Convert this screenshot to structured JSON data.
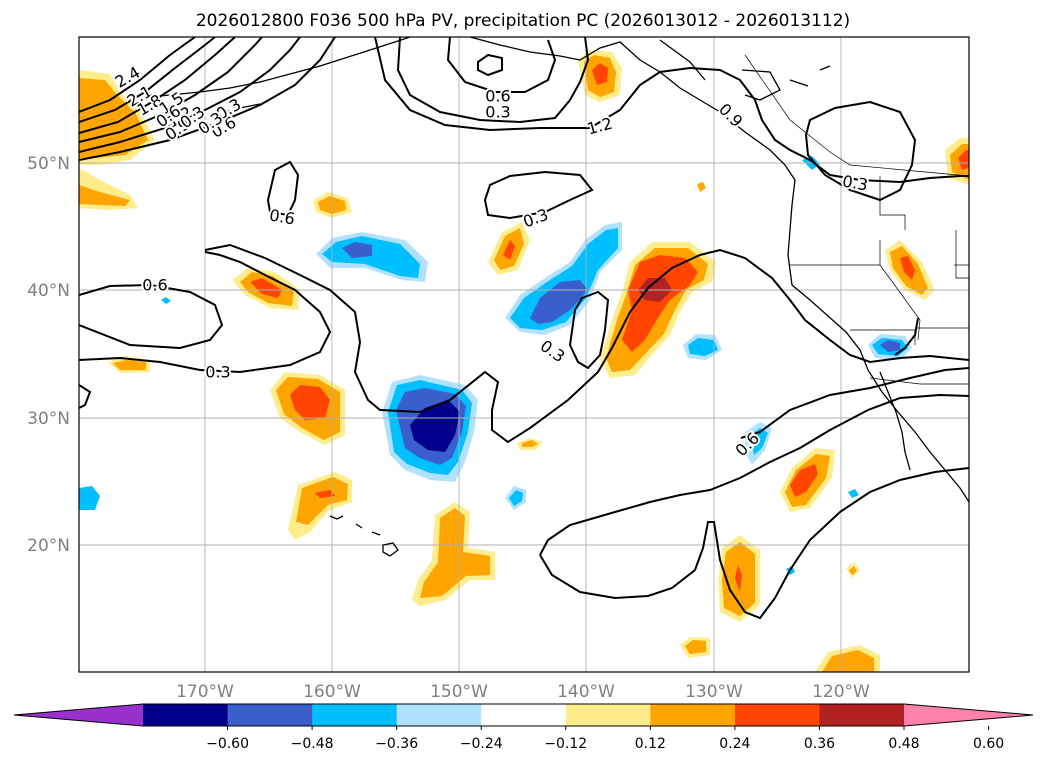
{
  "title": "2026012800 F036 500 hPa PV, precipitation PC (2026013012 - 2026013112)",
  "lat_labels": [
    "50°N",
    "40°N",
    "30°N",
    "20°N"
  ],
  "lon_labels": [
    "170°W",
    "160°W",
    "150°W",
    "140°W",
    "130°W",
    "120°W"
  ],
  "colorbar": {
    "colors": [
      "#9932cc",
      "#00008b",
      "#3a5fcd",
      "#00bfff",
      "#b0e2ff",
      "#ffffff",
      "#ffec8b",
      "#ffa500",
      "#ff4500",
      "#b22222",
      "#ff82ab"
    ],
    "ticks": [
      "−0.60",
      "−0.48",
      "−0.36",
      "−0.24",
      "−0.12",
      "0.12",
      "0.24",
      "0.36",
      "0.48",
      "0.60"
    ]
  },
  "contour_labels": [
    "2.4",
    "2.1",
    "1.8",
    "1.5",
    "1.2",
    "0.9",
    "0.6",
    "0.3",
    "0.6",
    "0.3",
    "1.2",
    "0.9",
    "0.6",
    "0.3",
    "0.6",
    "0.3",
    "0.3",
    "0.6",
    "0.3",
    "0.6",
    "0.3",
    "0.3"
  ]
}
